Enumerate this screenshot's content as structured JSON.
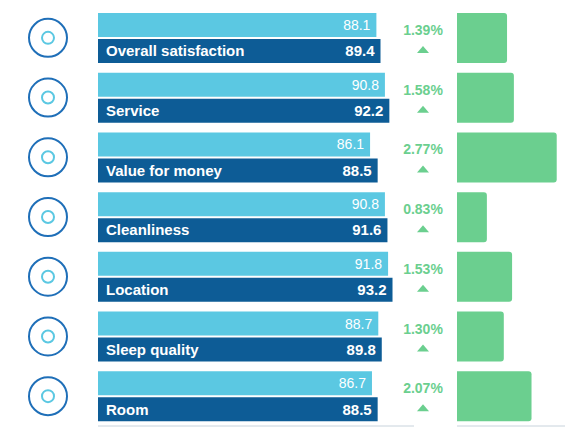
{
  "chart_data": [
    {
      "type": "bar",
      "orientation": "horizontal",
      "categories": [
        "Overall satisfaction",
        "Service",
        "Value for money",
        "Cleanliness",
        "Location",
        "Sleep quality",
        "Room"
      ],
      "series": [
        {
          "color": "#5bc8e2",
          "values": [
            88.1,
            90.8,
            86.1,
            90.8,
            91.8,
            88.7,
            86.7
          ]
        },
        {
          "color": "#0d5c96",
          "values": [
            89.4,
            92.2,
            88.5,
            91.6,
            93.2,
            89.8,
            88.5
          ]
        }
      ],
      "xlim": [
        0,
        100
      ],
      "data_labels": true,
      "tick_labels": false
    },
    {
      "type": "bar",
      "orientation": "horizontal",
      "categories": [
        "Overall satisfaction",
        "Service",
        "Value for money",
        "Cleanliness",
        "Location",
        "Sleep quality",
        "Room"
      ],
      "values": [
        1.39,
        1.58,
        2.77,
        0.83,
        1.53,
        1.3,
        2.07
      ],
      "value_labels": [
        "1.39%",
        "1.58%",
        "2.77%",
        "0.83%",
        "1.53%",
        "1.30%",
        "2.07%"
      ],
      "color": "#6bcf8f",
      "xlim": [
        0,
        3
      ],
      "data_labels": true,
      "tick_labels": false
    }
  ]
}
